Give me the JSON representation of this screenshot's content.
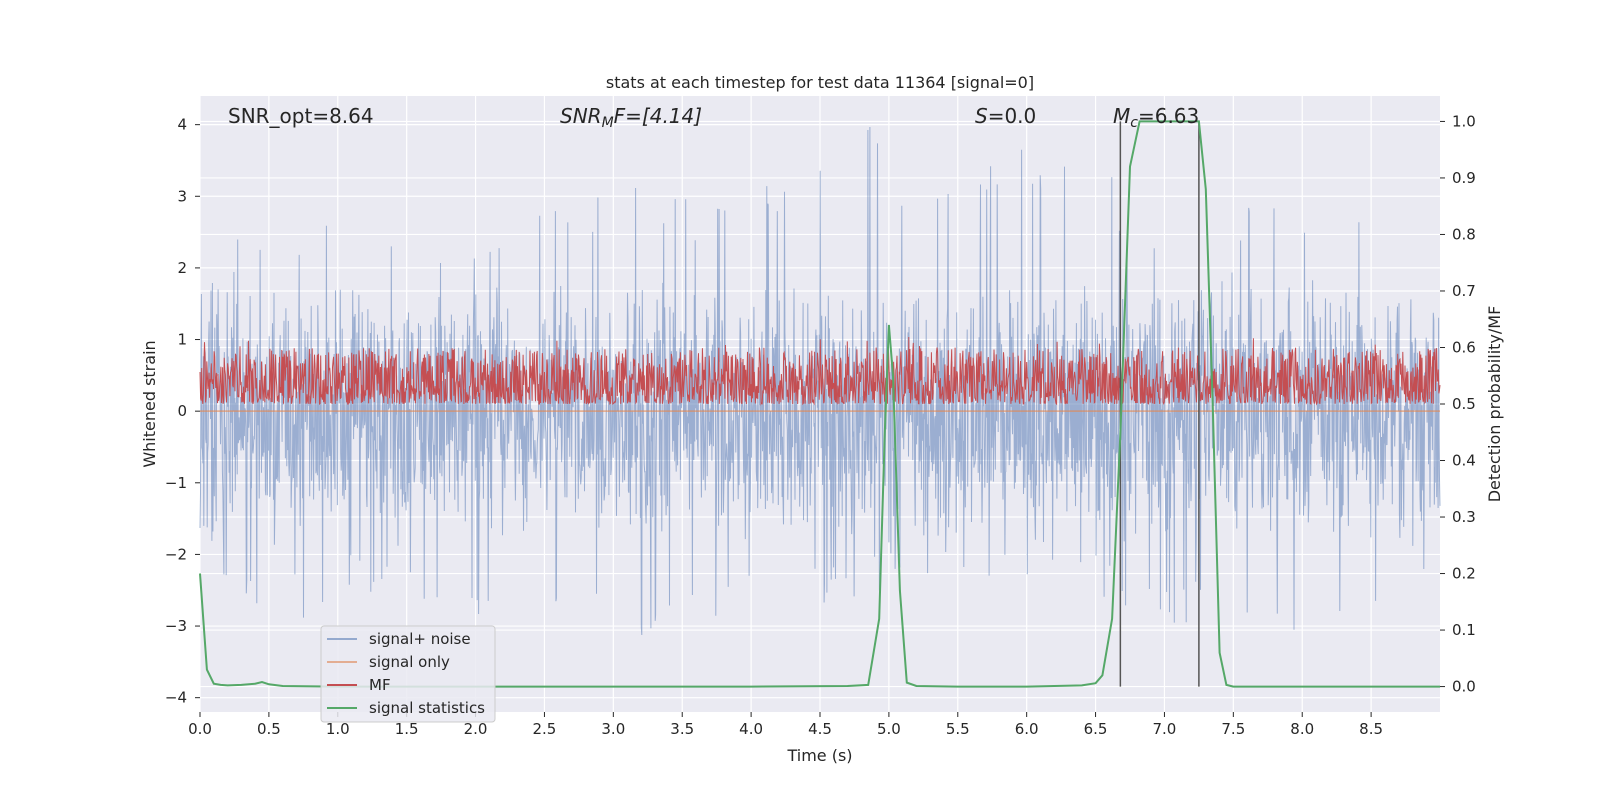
{
  "chart_data": {
    "type": "line",
    "title": "stats at each timestep for test data 11364 [signal=0]",
    "xlabel": "Time (s)",
    "ylabel": "Whitened strain",
    "y2label": "Detection probability/MF",
    "xlim": [
      0,
      9
    ],
    "ylim": [
      -4.2,
      4.4
    ],
    "y2lim": [
      -0.045,
      1.045
    ],
    "x_ticks": [
      0.0,
      0.5,
      1.0,
      1.5,
      2.0,
      2.5,
      3.0,
      3.5,
      4.0,
      4.5,
      5.0,
      5.5,
      6.0,
      6.5,
      7.0,
      7.5,
      8.0,
      8.5
    ],
    "x_tick_labels": [
      "0.0",
      "0.5",
      "1.0",
      "1.5",
      "2.0",
      "2.5",
      "3.0",
      "3.5",
      "4.0",
      "4.5",
      "5.0",
      "5.5",
      "6.0",
      "6.5",
      "7.0",
      "7.5",
      "8.0",
      "8.5"
    ],
    "y_ticks": [
      4,
      3,
      2,
      1,
      0,
      -1,
      -2,
      -3,
      -4
    ],
    "y_tick_labels": [
      "4",
      "3",
      "2",
      "1",
      "0",
      "−1",
      "−2",
      "−3",
      "−4"
    ],
    "y2_ticks": [
      1.0,
      0.9,
      0.8,
      0.7,
      0.6,
      0.5,
      0.4,
      0.3,
      0.2,
      0.1,
      0.0
    ],
    "y2_tick_labels": [
      "1.0",
      "0.9",
      "0.8",
      "0.7",
      "0.6",
      "0.5",
      "0.4",
      "0.3",
      "0.2",
      "0.1",
      "0.0"
    ],
    "grid": true,
    "legend_position": "lower-left",
    "annotations": {
      "snr_opt": "SNR_opt=8.64",
      "snr_mf_var": "SNR",
      "snr_mf_sub": "M",
      "snr_mf_rest": "F=[4.14]",
      "s_var": "S",
      "s_rest": "=0.0",
      "mc_var": "M",
      "mc_sub": "c",
      "mc_rest": "=6.63"
    },
    "vertical_lines_x": [
      6.68,
      7.25
    ],
    "series": [
      {
        "name": "signal+ noise",
        "color": "#4c72b0",
        "style": "dense noise, approx amplitude within ±1.5 with spikes up to 4.0 and down to -3.3",
        "envelope_upper": [
          [
            0.0,
            2.0
          ],
          [
            0.5,
            3.0
          ],
          [
            0.8,
            2.8
          ],
          [
            1.5,
            2.9
          ],
          [
            2.0,
            2.5
          ],
          [
            3.1,
            3.2
          ],
          [
            4.0,
            3.1
          ],
          [
            4.85,
            4.0
          ],
          [
            5.05,
            3.6
          ],
          [
            5.3,
            3.2
          ],
          [
            6.1,
            4.0
          ],
          [
            6.6,
            3.5
          ],
          [
            7.25,
            1.9
          ],
          [
            7.75,
            3.3
          ],
          [
            8.4,
            3.0
          ],
          [
            8.75,
            3.6
          ],
          [
            9.0,
            2.4
          ]
        ],
        "envelope_lower": [
          [
            0.0,
            -1.5
          ],
          [
            0.2,
            -2.9
          ],
          [
            0.5,
            -3.3
          ],
          [
            1.0,
            -2.5
          ],
          [
            2.4,
            -3.2
          ],
          [
            3.1,
            -3.2
          ],
          [
            4.5,
            -2.8
          ],
          [
            5.1,
            -2.4
          ],
          [
            5.5,
            -2.6
          ],
          [
            6.2,
            -2.4
          ],
          [
            7.25,
            -3.1
          ],
          [
            8.4,
            -3.3
          ],
          [
            8.7,
            -3.0
          ],
          [
            9.0,
            -2.0
          ]
        ]
      },
      {
        "name": "signal only",
        "color": "#dd8452",
        "x": [
          0,
          9
        ],
        "y": [
          0.0,
          0.0
        ]
      },
      {
        "name": "MF",
        "color": "#c44e52",
        "style": "dense noise on the right axis, approx 0.5 to 0.6, peaks near 0.62"
      },
      {
        "name": "signal statistics",
        "color": "#55a868",
        "axis": "right",
        "x": [
          0.0,
          0.05,
          0.1,
          0.15,
          0.2,
          0.3,
          0.4,
          0.45,
          0.5,
          0.6,
          1.0,
          2.0,
          3.0,
          4.0,
          4.7,
          4.85,
          4.93,
          4.97,
          5.0,
          5.03,
          5.08,
          5.13,
          5.2,
          5.5,
          6.0,
          6.4,
          6.5,
          6.55,
          6.62,
          6.68,
          6.75,
          6.82,
          6.9,
          7.0,
          7.1,
          7.2,
          7.25,
          7.3,
          7.35,
          7.4,
          7.45,
          7.5,
          8.0,
          9.0
        ],
        "y": [
          0.2,
          0.03,
          0.005,
          0.003,
          0.002,
          0.003,
          0.005,
          0.008,
          0.004,
          0.001,
          0.0,
          0.0,
          0.0,
          0.0,
          0.001,
          0.003,
          0.12,
          0.45,
          0.64,
          0.55,
          0.17,
          0.007,
          0.001,
          0.0,
          0.0,
          0.002,
          0.006,
          0.02,
          0.12,
          0.45,
          0.92,
          1.0,
          1.0,
          1.0,
          1.0,
          1.0,
          1.0,
          0.88,
          0.5,
          0.06,
          0.003,
          0.0,
          0.0,
          0.0
        ]
      }
    ]
  }
}
